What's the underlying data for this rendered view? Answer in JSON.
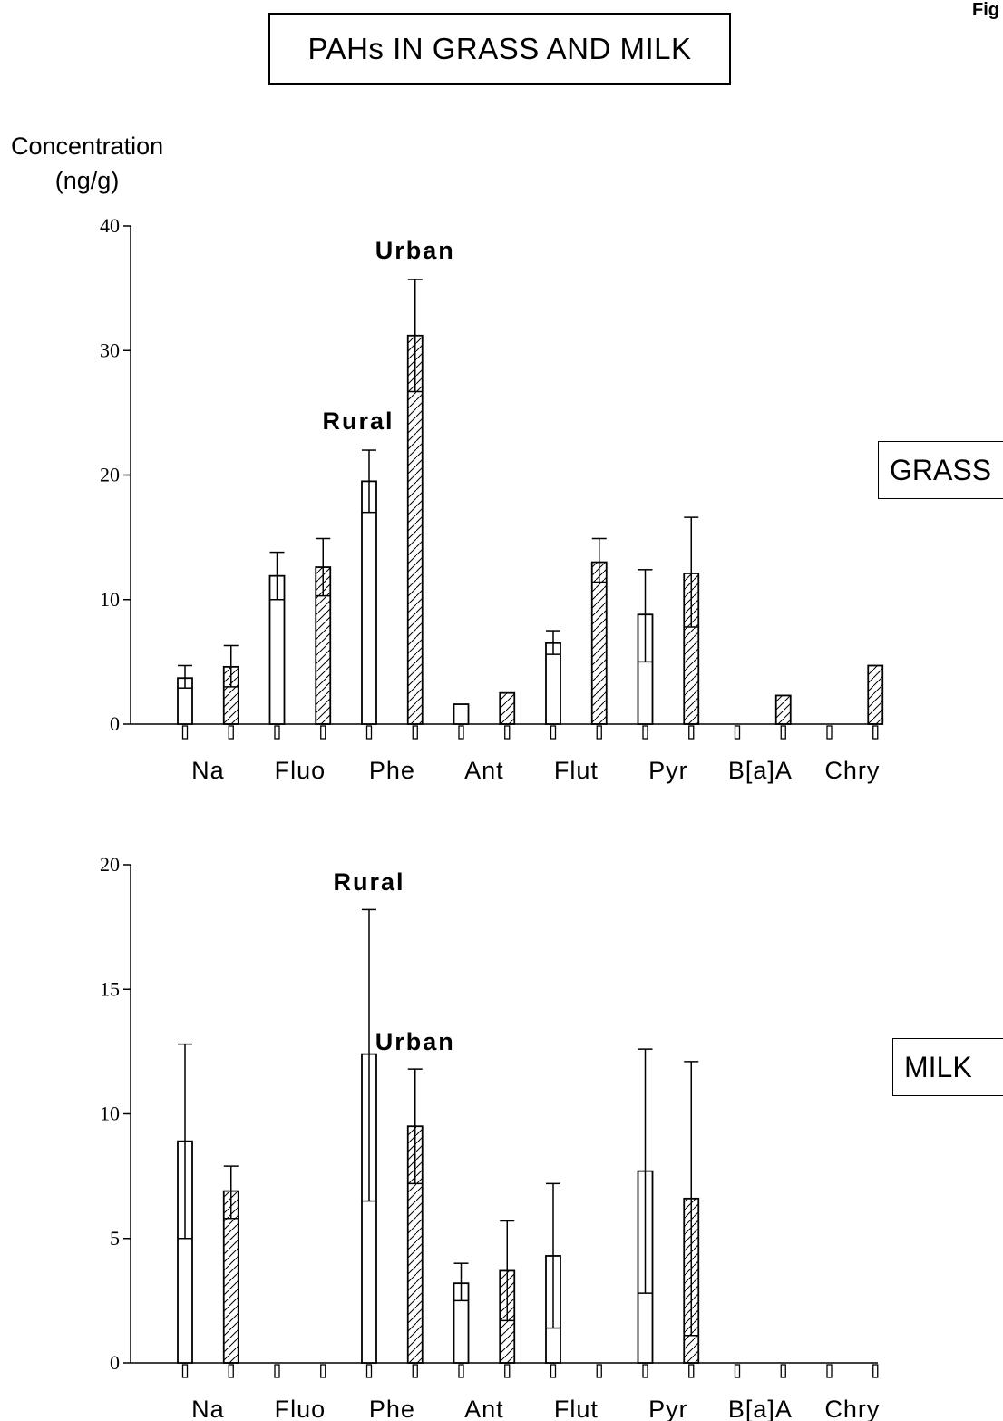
{
  "title": "PAHs IN GRASS AND MILK",
  "figure_label": "Fig",
  "ylabel_line1": "Concentration",
  "ylabel_line2": "(ng/g)",
  "colors": {
    "urban_hatch": "#000000",
    "rural_fill": "#ffffff"
  },
  "chart_data": [
    {
      "type": "bar",
      "panel_label": "GRASS",
      "categories": [
        "Na",
        "Fluo",
        "Phe",
        "Ant",
        "Flut",
        "Pyr",
        "B[a]A",
        "Chry"
      ],
      "ylim": [
        0,
        40
      ],
      "yticks": [
        0,
        10,
        20,
        30,
        40
      ],
      "grid": false,
      "series": [
        {
          "name": "Rural",
          "pattern": "open",
          "values": [
            3.7,
            11.9,
            19.5,
            1.6,
            6.5,
            8.8,
            0,
            0
          ],
          "error_upper": [
            4.7,
            13.8,
            22.0,
            null,
            7.5,
            12.4,
            null,
            null
          ],
          "error_lower": [
            2.9,
            10.0,
            17.0,
            null,
            5.6,
            5.0,
            null,
            null
          ]
        },
        {
          "name": "Urban",
          "pattern": "hatched",
          "values": [
            4.6,
            12.6,
            31.2,
            2.5,
            13.0,
            12.1,
            2.3,
            4.7
          ],
          "error_upper": [
            6.3,
            14.9,
            35.7,
            null,
            14.9,
            16.6,
            null,
            null
          ],
          "error_lower": [
            3.0,
            10.3,
            26.7,
            null,
            11.4,
            7.8,
            null,
            null
          ]
        }
      ],
      "annotations": [
        {
          "text": "Rural",
          "category": "Phe",
          "series": "Rural"
        },
        {
          "text": "Urban",
          "category": "Phe",
          "series": "Urban"
        }
      ]
    },
    {
      "type": "bar",
      "panel_label": "MILK",
      "categories": [
        "Na",
        "Fluo",
        "Phe",
        "Ant",
        "Flut",
        "Pyr",
        "B[a]A",
        "Chry"
      ],
      "ylim": [
        0,
        20
      ],
      "yticks": [
        0,
        5,
        10,
        15,
        20
      ],
      "grid": false,
      "series": [
        {
          "name": "Rural",
          "pattern": "open",
          "values": [
            8.9,
            0,
            12.4,
            3.2,
            4.3,
            7.7,
            0,
            0
          ],
          "error_upper": [
            12.8,
            null,
            18.2,
            4.0,
            7.2,
            12.6,
            null,
            null
          ],
          "error_lower": [
            5.0,
            null,
            6.5,
            2.5,
            1.4,
            2.8,
            null,
            null
          ]
        },
        {
          "name": "Urban",
          "pattern": "hatched",
          "values": [
            6.9,
            0,
            9.5,
            3.7,
            0,
            6.6,
            0,
            0
          ],
          "error_upper": [
            7.9,
            null,
            11.8,
            5.7,
            null,
            12.1,
            null,
            null
          ],
          "error_lower": [
            5.8,
            null,
            7.2,
            1.7,
            null,
            1.1,
            null,
            null
          ]
        }
      ],
      "annotations": [
        {
          "text": "Rural",
          "category": "Phe",
          "series": "Rural"
        },
        {
          "text": "Urban",
          "category": "Phe",
          "series": "Urban"
        }
      ]
    }
  ]
}
